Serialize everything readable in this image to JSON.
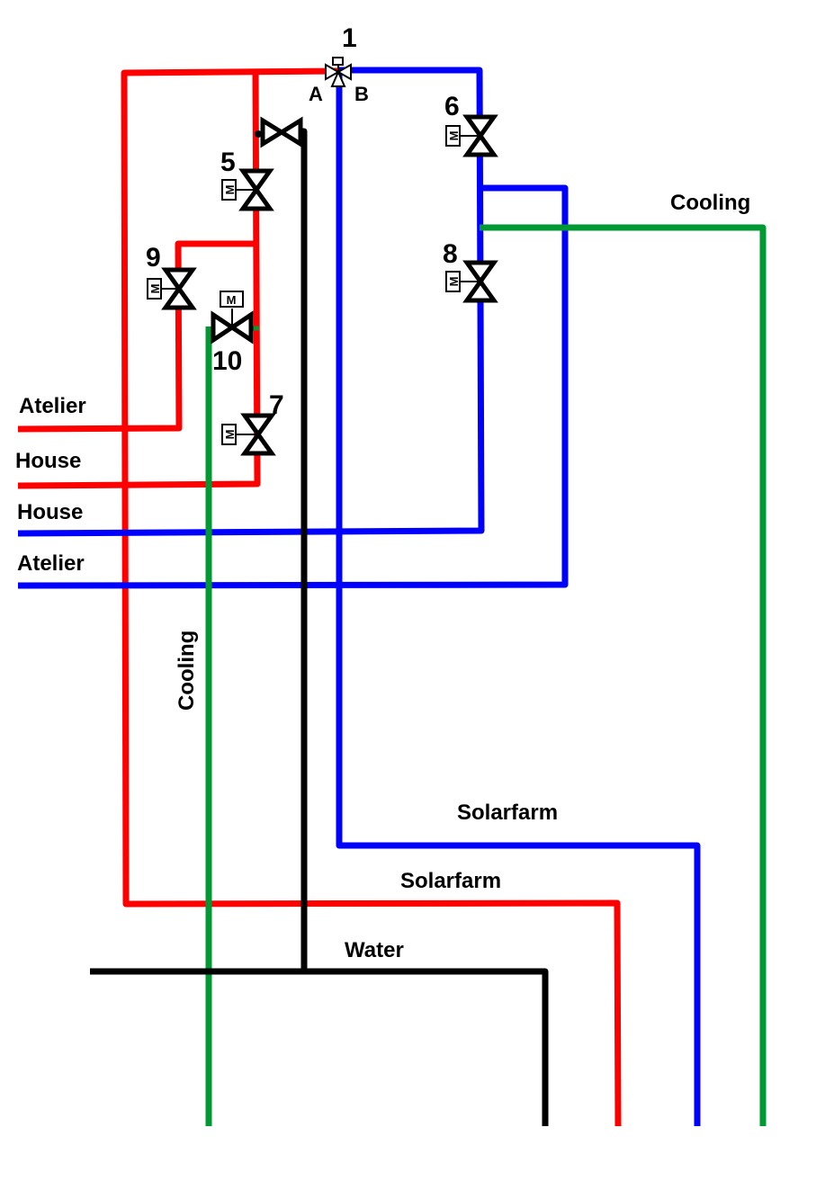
{
  "colors": {
    "hot": "#ff0000",
    "cold": "#0000ff",
    "cooling": "#009933",
    "water": "#000000"
  },
  "valves": {
    "v1": {
      "number": "1",
      "port_a": "A",
      "port_b": "B"
    },
    "v5": {
      "number": "5",
      "motor": "M"
    },
    "v6": {
      "number": "6",
      "motor": "M"
    },
    "v7": {
      "number": "7",
      "motor": "M"
    },
    "v8": {
      "number": "8",
      "motor": "M"
    },
    "v9": {
      "number": "9",
      "motor": "M"
    },
    "v10": {
      "number": "10",
      "motor": "M"
    }
  },
  "labels": {
    "atelier_hot": "Atelier",
    "house_hot": "House",
    "house_cold": "House",
    "atelier_cold": "Atelier",
    "cooling_right": "Cooling",
    "cooling_left": "Cooling",
    "solarfarm_cold": "Solarfarm",
    "solarfarm_hot": "Solarfarm",
    "water": "Water"
  }
}
